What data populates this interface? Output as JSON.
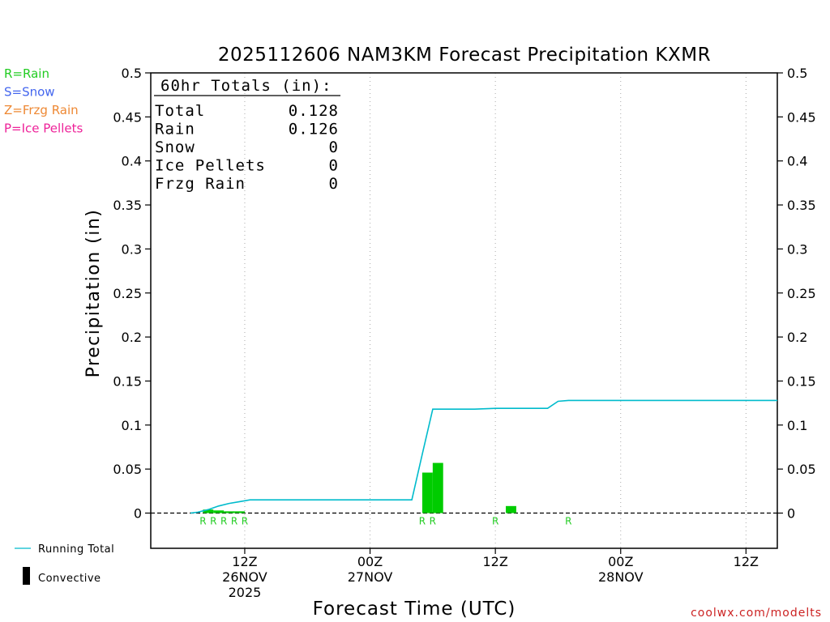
{
  "title": "2025112606 NAM3KM Forecast Precipitation KXMR",
  "ylabel": "Precipitation (in)",
  "xlabel": "Forecast Time (UTC)",
  "credit": "coolwx.com/modelts",
  "type_legend": [
    {
      "text": "R=Rain",
      "color": "#22cc22"
    },
    {
      "text": "S=Snow",
      "color": "#4466ee"
    },
    {
      "text": "Z=Frzg Rain",
      "color": "#ee8833"
    },
    {
      "text": "P=Ice Pellets",
      "color": "#ee2299"
    }
  ],
  "series_legend": [
    {
      "text": "Running Total",
      "color": "#00bbcc",
      "kind": "line"
    },
    {
      "text": "Convective",
      "color": "#000000",
      "kind": "bar"
    }
  ],
  "totals": {
    "header": "60hr Totals (in):",
    "rows": [
      {
        "label": "Total",
        "value": "0.128"
      },
      {
        "label": "Rain",
        "value": "0.126"
      },
      {
        "label": "Snow",
        "value": "0"
      },
      {
        "label": "Ice Pellets",
        "value": "0"
      },
      {
        "label": "Frzg Rain",
        "value": "0"
      }
    ]
  },
  "chart_data": {
    "type": "bar",
    "ylim": [
      -0.04,
      0.5
    ],
    "xlim": [
      -3,
      57
    ],
    "yticks": [
      0,
      0.05,
      0.1,
      0.15,
      0.2,
      0.25,
      0.3,
      0.35,
      0.4,
      0.45,
      0.5
    ],
    "ytick_labels": [
      "0",
      "0.05",
      "0.1",
      "0.15",
      "0.2",
      "0.25",
      "0.3",
      "0.35",
      "0.4",
      "0.45",
      "0.5"
    ],
    "xticks": [
      {
        "x": 6,
        "labels": [
          "12Z",
          "26NOV",
          "2025"
        ]
      },
      {
        "x": 18,
        "labels": [
          "00Z",
          "27NOV"
        ]
      },
      {
        "x": 30,
        "labels": [
          "12Z"
        ]
      },
      {
        "x": 42,
        "labels": [
          "00Z",
          "28NOV"
        ]
      },
      {
        "x": 54,
        "labels": [
          "12Z"
        ]
      }
    ],
    "grid_x": true,
    "bars": [
      {
        "x": 2.5,
        "value": 0.004,
        "color": "#00cc00"
      },
      {
        "x": 3.5,
        "value": 0.003,
        "color": "#00cc00"
      },
      {
        "x": 4.5,
        "value": 0.002,
        "color": "#00cc00"
      },
      {
        "x": 5.5,
        "value": 0.002,
        "color": "#00cc00"
      },
      {
        "x": 23.5,
        "value": 0.046,
        "color": "#00cc00"
      },
      {
        "x": 24.5,
        "value": 0.057,
        "color": "#00cc00"
      },
      {
        "x": 31.5,
        "value": 0.008,
        "color": "#00cc00"
      }
    ],
    "type_marks": [
      {
        "x": 2,
        "text": "R",
        "color": "#22cc22"
      },
      {
        "x": 3,
        "text": "R",
        "color": "#22cc22"
      },
      {
        "x": 4,
        "text": "R",
        "color": "#22cc22"
      },
      {
        "x": 5,
        "text": "R",
        "color": "#22cc22"
      },
      {
        "x": 6,
        "text": "R",
        "color": "#22cc22"
      },
      {
        "x": 23,
        "text": "R",
        "color": "#22cc22"
      },
      {
        "x": 24,
        "text": "R",
        "color": "#22cc22"
      },
      {
        "x": 30,
        "text": "R",
        "color": "#22cc22"
      },
      {
        "x": 37,
        "text": "R",
        "color": "#22cc22"
      }
    ],
    "running_total": {
      "name": "Running Total",
      "color": "#00bbcc",
      "x": [
        0.8,
        1.5,
        2.5,
        3.5,
        4.5,
        5.5,
        6.5,
        8,
        12,
        18,
        21,
        22,
        23,
        24,
        25,
        28,
        30,
        31,
        34,
        35,
        36,
        37,
        40,
        45,
        50,
        57
      ],
      "y": [
        0,
        0.001,
        0.004,
        0.008,
        0.011,
        0.013,
        0.015,
        0.015,
        0.015,
        0.015,
        0.015,
        0.015,
        0.067,
        0.118,
        0.118,
        0.118,
        0.119,
        0.119,
        0.119,
        0.119,
        0.127,
        0.128,
        0.128,
        0.128,
        0.128,
        0.128
      ]
    }
  }
}
